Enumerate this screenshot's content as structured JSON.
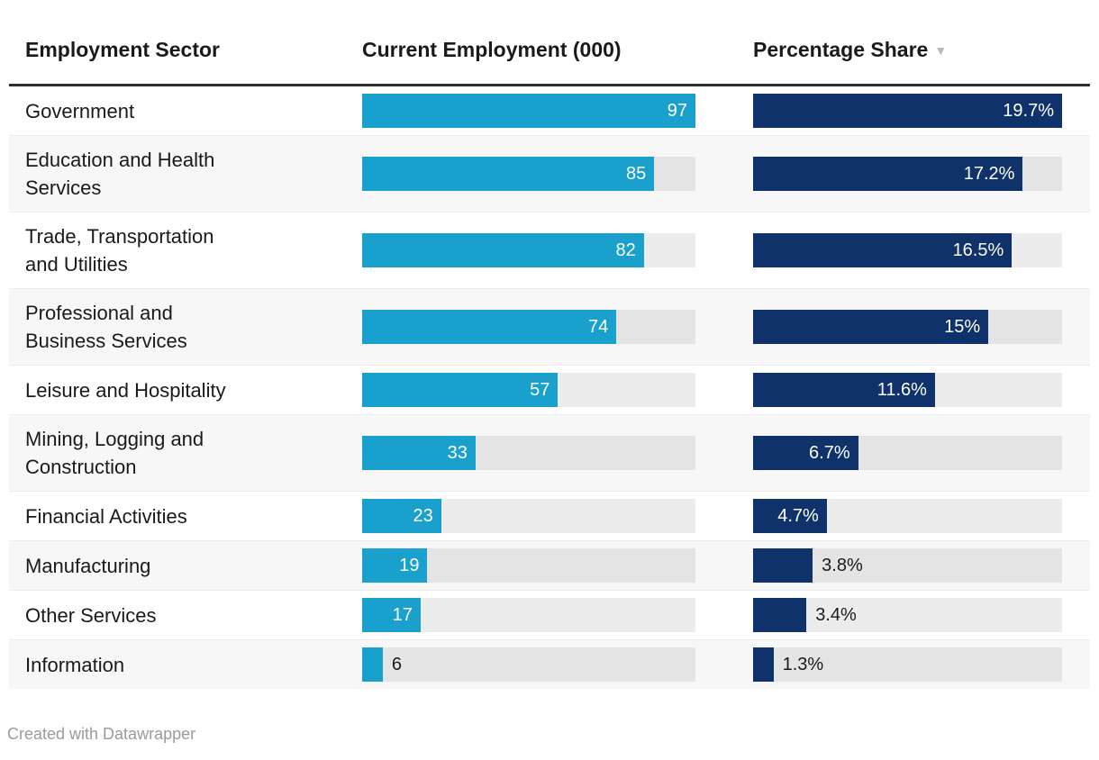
{
  "header": {
    "sector": "Employment Sector",
    "employment": "Current Employment (000)",
    "share": "Percentage Share",
    "sort_indicator": "▼"
  },
  "rows": [
    {
      "sector": "Government",
      "employment": 97,
      "employment_label": "97",
      "share": 19.7,
      "share_label": "19.7%"
    },
    {
      "sector": "Education and Health Services",
      "employment": 85,
      "employment_label": "85",
      "share": 17.2,
      "share_label": "17.2%"
    },
    {
      "sector": "Trade, Transportation and Utilities",
      "employment": 82,
      "employment_label": "82",
      "share": 16.5,
      "share_label": "16.5%"
    },
    {
      "sector": "Professional and Business Services",
      "employment": 74,
      "employment_label": "74",
      "share": 15,
      "share_label": "15%"
    },
    {
      "sector": "Leisure and Hospitality",
      "employment": 57,
      "employment_label": "57",
      "share": 11.6,
      "share_label": "11.6%"
    },
    {
      "sector": "Mining, Logging and Construction",
      "employment": 33,
      "employment_label": "33",
      "share": 6.7,
      "share_label": "6.7%"
    },
    {
      "sector": "Financial Activities",
      "employment": 23,
      "employment_label": "23",
      "share": 4.7,
      "share_label": "4.7%"
    },
    {
      "sector": "Manufacturing",
      "employment": 19,
      "employment_label": "19",
      "share": 3.8,
      "share_label": "3.8%"
    },
    {
      "sector": "Other Services",
      "employment": 17,
      "employment_label": "17",
      "share": 3.4,
      "share_label": "3.4%"
    },
    {
      "sector": "Information",
      "employment": 6,
      "employment_label": "6",
      "share": 1.3,
      "share_label": "1.3%"
    }
  ],
  "scale": {
    "employment_max": 97,
    "share_max": 19.7
  },
  "colors": {
    "employment_bar": "#1aa0cc",
    "share_bar": "#0e3269",
    "bar_track": "rgba(0,0,0,0.075)",
    "row_alt": "#f7f7f7",
    "header_rule": "#2f2f2f"
  },
  "footer": {
    "credit": "Created with Datawrapper"
  },
  "chart_data": {
    "type": "bar",
    "orientation": "horizontal",
    "title": "",
    "categories": [
      "Government",
      "Education and Health Services",
      "Trade, Transportation and Utilities",
      "Professional and Business Services",
      "Leisure and Hospitality",
      "Mining, Logging and Construction",
      "Financial Activities",
      "Manufacturing",
      "Other Services",
      "Information"
    ],
    "series": [
      {
        "name": "Current Employment (000)",
        "values": [
          97,
          85,
          82,
          74,
          57,
          33,
          23,
          19,
          17,
          6
        ],
        "xlim": [
          0,
          97
        ]
      },
      {
        "name": "Percentage Share",
        "unit": "%",
        "values": [
          19.7,
          17.2,
          16.5,
          15,
          11.6,
          6.7,
          4.7,
          3.8,
          3.4,
          1.3
        ],
        "xlim": [
          0,
          19.7
        ]
      }
    ],
    "sort": "descending by Percentage Share",
    "grid": false,
    "legend_position": "none"
  }
}
